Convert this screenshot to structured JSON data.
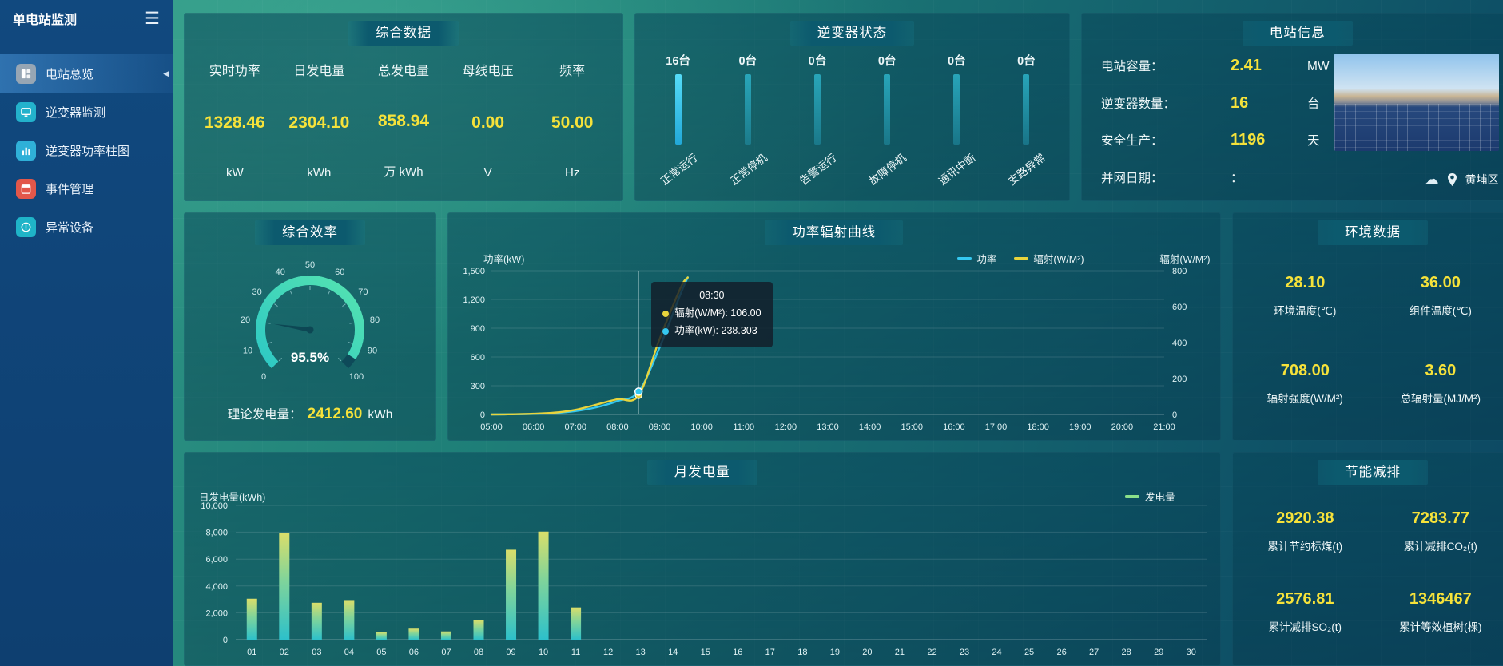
{
  "sidebar": {
    "title": "单电站监测",
    "items": [
      {
        "key": "overview",
        "label": "电站总览",
        "icon": "overview",
        "icon_color": "#97a6b4",
        "active": true
      },
      {
        "key": "inverter-monitor",
        "label": "逆变器监测",
        "icon": "monitor",
        "icon_color": "#23b2cc",
        "active": false
      },
      {
        "key": "inverter-power-bars",
        "label": "逆变器功率柱图",
        "icon": "barchart",
        "icon_color": "#2fb0d8",
        "active": false
      },
      {
        "key": "event-management",
        "label": "事件管理",
        "icon": "event",
        "icon_color": "#e2574a",
        "active": false
      },
      {
        "key": "abnormal-devices",
        "label": "异常设备",
        "icon": "abnormal",
        "icon_color": "#1fb4c8",
        "active": false
      }
    ]
  },
  "panels": {
    "summary": {
      "title": "综合数据",
      "metrics": [
        {
          "label": "实时功率",
          "value": "1328.46",
          "unit": "kW"
        },
        {
          "label": "日发电量",
          "value": "2304.10",
          "unit": "kWh"
        },
        {
          "label": "总发电量",
          "value": "858.94",
          "unit": "万 kWh"
        },
        {
          "label": "母线电压",
          "value": "0.00",
          "unit": "V"
        },
        {
          "label": "频率",
          "value": "50.00",
          "unit": "Hz"
        }
      ]
    },
    "inverter_status": {
      "title": "逆变器状态",
      "items": [
        {
          "count": "16台",
          "label": "正常运行",
          "bright": true
        },
        {
          "count": "0台",
          "label": "正常停机",
          "bright": false
        },
        {
          "count": "0台",
          "label": "告警运行",
          "bright": false
        },
        {
          "count": "0台",
          "label": "故障停机",
          "bright": false
        },
        {
          "count": "0台",
          "label": "通讯中断",
          "bright": false
        },
        {
          "count": "0台",
          "label": "支路异常",
          "bright": false
        }
      ]
    },
    "station_info": {
      "title": "电站信息",
      "rows": [
        {
          "label": "电站容量：",
          "value": "2.41",
          "unit": "MW",
          "plain": false
        },
        {
          "label": "逆变器数量：",
          "value": "16",
          "unit": "台",
          "plain": false
        },
        {
          "label": "安全生产：",
          "value": "1196",
          "unit": "天",
          "plain": false
        },
        {
          "label": "并网日期：",
          "value": "：",
          "unit": "",
          "plain": true
        }
      ],
      "location": "黄埔区"
    },
    "efficiency": {
      "title": "综合效率",
      "theory_label": "理论发电量：",
      "theory_value": "2412.60",
      "theory_unit": "kWh"
    },
    "power_curve": {
      "title": "功率辐射曲线"
    },
    "environment": {
      "title": "环境数据",
      "metrics": [
        {
          "value": "28.10",
          "label": "环境温度(℃)"
        },
        {
          "value": "36.00",
          "label": "组件温度(℃)"
        },
        {
          "value": "708.00",
          "label": "辐射强度(W/M²)"
        },
        {
          "value": "3.60",
          "label": "总辐射量(MJ/M²)"
        }
      ]
    },
    "monthly": {
      "title": "月发电量"
    },
    "saving": {
      "title": "节能减排",
      "metrics": [
        {
          "value": "2920.38",
          "label": "累计节约标煤(t)"
        },
        {
          "value": "7283.77",
          "label": "累计减排CO₂(t)"
        },
        {
          "value": "2576.81",
          "label": "累计减排SO₂(t)"
        },
        {
          "value": "1346467",
          "label": "累计等效植树(棵)"
        }
      ]
    }
  },
  "chart_data": [
    {
      "type": "gauge",
      "title": "综合效率",
      "min": 0,
      "max": 100,
      "value": 95.5,
      "value_label": "95.5%",
      "pointer_value": 20,
      "tick_labels": [
        0,
        10,
        20,
        30,
        40,
        50,
        60,
        70,
        80,
        90,
        100
      ],
      "arc_colors": [
        "#2ec9c4",
        "#55e3b0"
      ]
    },
    {
      "type": "line",
      "title": "功率辐射曲线",
      "x_range": [
        5,
        21
      ],
      "x_ticks": [
        "05:00",
        "06:00",
        "07:00",
        "08:00",
        "09:00",
        "10:00",
        "11:00",
        "12:00",
        "13:00",
        "14:00",
        "15:00",
        "16:00",
        "17:00",
        "18:00",
        "19:00",
        "20:00",
        "21:00"
      ],
      "x_hours": [
        5,
        5.5,
        6,
        6.5,
        7,
        7.5,
        8,
        8.5,
        9,
        9.5,
        9.67
      ],
      "series": [
        {
          "name": "功率",
          "color": "#35c8f0",
          "axis": "left",
          "values": [
            0,
            2,
            6,
            15,
            35,
            75,
            140,
            238.303,
            700,
            1260,
            1430
          ]
        },
        {
          "name": "辐射(W/M²)",
          "color": "#e8d43c",
          "axis": "right",
          "values": [
            0,
            1,
            4,
            10,
            26,
            55,
            85,
            106,
            420,
            705,
            762
          ]
        }
      ],
      "y_left": {
        "label": "功率(kW)",
        "min": 0,
        "max": 1500,
        "ticks": [
          "0",
          "300",
          "600",
          "900",
          "1,200",
          "1,500"
        ]
      },
      "y_right": {
        "label": "辐射(W/M²)",
        "min": 0,
        "max": 800,
        "ticks": [
          "0",
          "200",
          "400",
          "600",
          "800"
        ]
      },
      "tooltip": {
        "x_index": 7,
        "title": "08:30",
        "rows": [
          {
            "color": "#e8d43c",
            "text": "辐射(W/M²): 106.00"
          },
          {
            "color": "#35c8f0",
            "text": "功率(kW): 238.303"
          }
        ]
      },
      "legend_position": "top-right",
      "grid": true
    },
    {
      "type": "bar",
      "title": "月发电量",
      "ylabel": "日发电量(kWh)",
      "legend": "发电量",
      "legend_color": "#8be08a",
      "bar_colors": [
        "#dade6a",
        "#2dc0ca"
      ],
      "ylim": [
        0,
        10000
      ],
      "y_ticks": [
        "0",
        "2,000",
        "4,000",
        "6,000",
        "8,000",
        "10,000"
      ],
      "categories": [
        "01",
        "02",
        "03",
        "04",
        "05",
        "06",
        "07",
        "08",
        "09",
        "10",
        "11",
        "12",
        "13",
        "14",
        "15",
        "16",
        "17",
        "18",
        "19",
        "20",
        "21",
        "22",
        "23",
        "24",
        "25",
        "26",
        "27",
        "28",
        "29",
        "30"
      ],
      "values": [
        3050,
        7950,
        2750,
        2950,
        560,
        820,
        610,
        1450,
        6700,
        8050,
        2400,
        0,
        0,
        0,
        0,
        0,
        0,
        0,
        0,
        0,
        0,
        0,
        0,
        0,
        0,
        0,
        0,
        0,
        0,
        0
      ]
    }
  ]
}
